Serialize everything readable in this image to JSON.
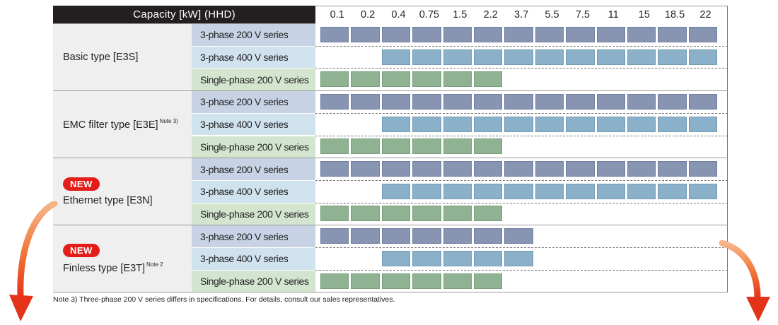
{
  "header": {
    "capacity_label": "Capacity [kW] (HHD)",
    "capacities": [
      "0.1",
      "0.2",
      "0.4",
      "0.75",
      "1.5",
      "2.2",
      "3.7",
      "5.5",
      "7.5",
      "11",
      "15",
      "18.5",
      "22"
    ]
  },
  "types": [
    {
      "name": "Basic type [E3S]",
      "note": "",
      "is_new": false,
      "series": [
        {
          "label": "3-phase 200 V series",
          "kind": "200",
          "start": 0,
          "end": 12
        },
        {
          "label": "3-phase 400 V series",
          "kind": "400",
          "start": 2,
          "end": 12
        },
        {
          "label": "Single-phase 200 V series",
          "kind": "1ph",
          "start": 0,
          "end": 5
        }
      ]
    },
    {
      "name": "EMC filter type [E3E]",
      "note": "Note 3)",
      "is_new": false,
      "series": [
        {
          "label": "3-phase 200 V series",
          "kind": "200",
          "start": 0,
          "end": 12
        },
        {
          "label": "3-phase 400 V series",
          "kind": "400",
          "start": 2,
          "end": 12
        },
        {
          "label": "Single-phase 200 V series",
          "kind": "1ph",
          "start": 0,
          "end": 5
        }
      ]
    },
    {
      "name": "Ethernet type [E3N]",
      "note": "",
      "is_new": true,
      "series": [
        {
          "label": "3-phase 200 V series",
          "kind": "200",
          "start": 0,
          "end": 12
        },
        {
          "label": "3-phase 400 V series",
          "kind": "400",
          "start": 2,
          "end": 12
        },
        {
          "label": "Single-phase 200 V series",
          "kind": "1ph",
          "start": 0,
          "end": 5
        }
      ]
    },
    {
      "name": "Finless type [E3T]",
      "note": "Note 2",
      "is_new": true,
      "series": [
        {
          "label": "3-phase 200 V series",
          "kind": "200",
          "start": 0,
          "end": 6
        },
        {
          "label": "3-phase 400 V series",
          "kind": "400",
          "start": 2,
          "end": 6
        },
        {
          "label": "Single-phase 200 V series",
          "kind": "1ph",
          "start": 0,
          "end": 5
        }
      ]
    }
  ],
  "new_badge": "NEW",
  "footnote": "Note 3) Three-phase 200 V series differs in specifications. For details, consult our sales representatives.",
  "colors": {
    "header_bg": "#231f20",
    "bar_200": "#8795b3",
    "bar_400": "#8ab1c9",
    "bar_1ph": "#8fb392",
    "new_badge": "#e31d1a",
    "arrow": "#e8501c"
  },
  "icons": [
    "arrow-down-left-icon",
    "arrow-down-right-icon"
  ]
}
